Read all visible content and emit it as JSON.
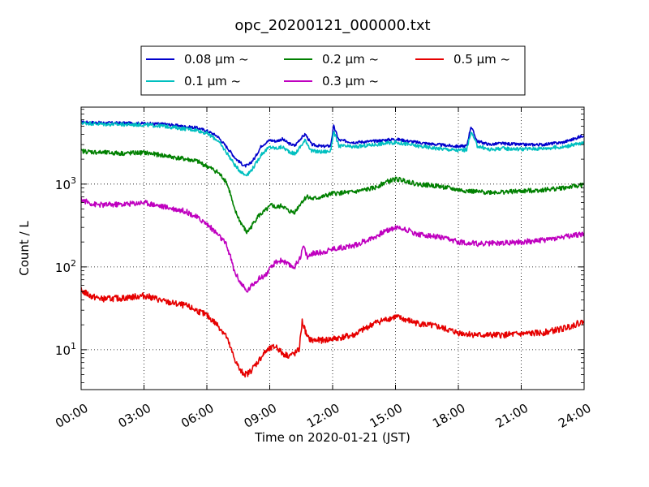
{
  "chart_data": {
    "type": "line",
    "title": "opc_20200121_000000.txt",
    "xlabel": "Time on 2020-01-21 (JST)",
    "ylabel": "Count / L",
    "x_unit": "hour",
    "xlim": [
      0,
      24
    ],
    "ylim": [
      3.3,
      8500
    ],
    "yscale": "log",
    "grid": true,
    "legend_position": "top-center",
    "x_ticks": [
      {
        "value": 0,
        "label": "00:00"
      },
      {
        "value": 3,
        "label": "03:00"
      },
      {
        "value": 6,
        "label": "06:00"
      },
      {
        "value": 9,
        "label": "09:00"
      },
      {
        "value": 12,
        "label": "12:00"
      },
      {
        "value": 15,
        "label": "15:00"
      },
      {
        "value": 18,
        "label": "18:00"
      },
      {
        "value": 21,
        "label": "21:00"
      },
      {
        "value": 24,
        "label": "24:00"
      }
    ],
    "y_ticks": [
      {
        "value": 10,
        "base": "10",
        "exp": "1"
      },
      {
        "value": 100,
        "base": "10",
        "exp": "2"
      },
      {
        "value": 1000,
        "base": "10",
        "exp": "3"
      }
    ],
    "series": [
      {
        "name": "0.08 μm ~",
        "color": "#0000cc",
        "points": [
          [
            0,
            5600
          ],
          [
            1,
            5500
          ],
          [
            2,
            5450
          ],
          [
            3,
            5400
          ],
          [
            4,
            5300
          ],
          [
            4.8,
            5000
          ],
          [
            5.5,
            4800
          ],
          [
            6,
            4400
          ],
          [
            6.5,
            3800
          ],
          [
            7,
            2700
          ],
          [
            7.4,
            2000
          ],
          [
            7.8,
            1650
          ],
          [
            8,
            1700
          ],
          [
            8.3,
            2100
          ],
          [
            8.6,
            2900
          ],
          [
            9,
            3400
          ],
          [
            9.3,
            3300
          ],
          [
            9.6,
            3500
          ],
          [
            9.9,
            3100
          ],
          [
            10.2,
            2900
          ],
          [
            10.4,
            3400
          ],
          [
            10.7,
            4000
          ],
          [
            11,
            3000
          ],
          [
            11.5,
            2850
          ],
          [
            11.9,
            2900
          ],
          [
            12.05,
            5000
          ],
          [
            12.3,
            3400
          ],
          [
            13,
            3200
          ],
          [
            14,
            3300
          ],
          [
            15,
            3500
          ],
          [
            16,
            3200
          ],
          [
            17,
            3000
          ],
          [
            18,
            2850
          ],
          [
            18.4,
            2900
          ],
          [
            18.6,
            5000
          ],
          [
            18.9,
            3300
          ],
          [
            19.5,
            3000
          ],
          [
            20,
            3100
          ],
          [
            21,
            3000
          ],
          [
            22,
            3000
          ],
          [
            23,
            3200
          ],
          [
            23.5,
            3500
          ],
          [
            24,
            3900
          ]
        ]
      },
      {
        "name": "0.1 μm ~",
        "color": "#00bfbf",
        "points": [
          [
            0,
            5500
          ],
          [
            1,
            5300
          ],
          [
            2,
            5250
          ],
          [
            3,
            5200
          ],
          [
            4,
            5000
          ],
          [
            4.8,
            4700
          ],
          [
            5.5,
            4500
          ],
          [
            6,
            4100
          ],
          [
            6.5,
            3400
          ],
          [
            7,
            2300
          ],
          [
            7.4,
            1600
          ],
          [
            7.8,
            1300
          ],
          [
            8,
            1350
          ],
          [
            8.3,
            1700
          ],
          [
            8.6,
            2300
          ],
          [
            9,
            2800
          ],
          [
            9.3,
            2700
          ],
          [
            9.6,
            2800
          ],
          [
            9.9,
            2500
          ],
          [
            10.2,
            2300
          ],
          [
            10.4,
            2700
          ],
          [
            10.7,
            3400
          ],
          [
            11,
            2500
          ],
          [
            11.5,
            2450
          ],
          [
            11.9,
            2500
          ],
          [
            12.05,
            4300
          ],
          [
            12.3,
            2900
          ],
          [
            13,
            2800
          ],
          [
            14,
            3000
          ],
          [
            15,
            3200
          ],
          [
            16,
            2900
          ],
          [
            17,
            2700
          ],
          [
            18,
            2550
          ],
          [
            18.4,
            2600
          ],
          [
            18.6,
            4300
          ],
          [
            18.9,
            2900
          ],
          [
            19.5,
            2600
          ],
          [
            20,
            2700
          ],
          [
            21,
            2650
          ],
          [
            22,
            2700
          ],
          [
            23,
            2800
          ],
          [
            23.5,
            3000
          ],
          [
            24,
            3100
          ]
        ]
      },
      {
        "name": "0.2 μm ~",
        "color": "#008000",
        "points": [
          [
            0,
            2500
          ],
          [
            1,
            2400
          ],
          [
            2,
            2350
          ],
          [
            3,
            2400
          ],
          [
            4,
            2200
          ],
          [
            5,
            2000
          ],
          [
            5.5,
            1900
          ],
          [
            6,
            1650
          ],
          [
            6.5,
            1400
          ],
          [
            6.9,
            1100
          ],
          [
            7.1,
            800
          ],
          [
            7.3,
            500
          ],
          [
            7.6,
            350
          ],
          [
            7.9,
            260
          ],
          [
            8.1,
            300
          ],
          [
            8.4,
            400
          ],
          [
            8.8,
            480
          ],
          [
            9.1,
            560
          ],
          [
            9.3,
            520
          ],
          [
            9.6,
            550
          ],
          [
            9.9,
            470
          ],
          [
            10.2,
            460
          ],
          [
            10.5,
            600
          ],
          [
            10.8,
            720
          ],
          [
            11,
            660
          ],
          [
            11.5,
            700
          ],
          [
            12,
            770
          ],
          [
            13,
            800
          ],
          [
            14,
            900
          ],
          [
            14.5,
            1050
          ],
          [
            15,
            1150
          ],
          [
            15.5,
            1100
          ],
          [
            16,
            1000
          ],
          [
            17,
            950
          ],
          [
            18,
            850
          ],
          [
            19,
            800
          ],
          [
            20,
            800
          ],
          [
            21,
            820
          ],
          [
            22,
            850
          ],
          [
            23,
            900
          ],
          [
            24,
            980
          ]
        ]
      },
      {
        "name": "0.3 μm ~",
        "color": "#bf00bf",
        "points": [
          [
            0,
            650
          ],
          [
            0.6,
            570
          ],
          [
            1,
            560
          ],
          [
            2,
            570
          ],
          [
            3,
            600
          ],
          [
            4,
            530
          ],
          [
            5,
            470
          ],
          [
            5.5,
            400
          ],
          [
            6,
            330
          ],
          [
            6.5,
            250
          ],
          [
            6.9,
            190
          ],
          [
            7.1,
            140
          ],
          [
            7.3,
            90
          ],
          [
            7.6,
            65
          ],
          [
            7.9,
            50
          ],
          [
            8.1,
            58
          ],
          [
            8.4,
            70
          ],
          [
            8.8,
            80
          ],
          [
            9.1,
            100
          ],
          [
            9.3,
            115
          ],
          [
            9.6,
            120
          ],
          [
            9.9,
            105
          ],
          [
            10.2,
            100
          ],
          [
            10.5,
            140
          ],
          [
            10.6,
            180
          ],
          [
            10.8,
            130
          ],
          [
            11,
            145
          ],
          [
            11.5,
            150
          ],
          [
            12,
            165
          ],
          [
            13,
            180
          ],
          [
            14,
            230
          ],
          [
            14.5,
            270
          ],
          [
            15,
            300
          ],
          [
            15.5,
            285
          ],
          [
            16,
            250
          ],
          [
            17,
            230
          ],
          [
            18,
            200
          ],
          [
            19,
            190
          ],
          [
            20,
            195
          ],
          [
            21,
            200
          ],
          [
            22,
            210
          ],
          [
            23,
            230
          ],
          [
            24,
            250
          ]
        ]
      },
      {
        "name": "0.5 μm ~",
        "color": "#e60000",
        "points": [
          [
            0,
            52
          ],
          [
            0.5,
            44
          ],
          [
            1,
            41
          ],
          [
            2,
            42
          ],
          [
            3,
            45
          ],
          [
            3.5,
            42
          ],
          [
            4,
            38
          ],
          [
            5,
            34
          ],
          [
            5.5,
            30
          ],
          [
            6,
            26
          ],
          [
            6.5,
            20
          ],
          [
            6.9,
            15
          ],
          [
            7.1,
            11
          ],
          [
            7.3,
            8
          ],
          [
            7.6,
            5.5
          ],
          [
            7.9,
            5
          ],
          [
            8.1,
            5.6
          ],
          [
            8.4,
            7
          ],
          [
            8.8,
            9.5
          ],
          [
            9.1,
            10.5
          ],
          [
            9.3,
            11
          ],
          [
            9.6,
            9
          ],
          [
            9.9,
            8.5
          ],
          [
            10.2,
            9
          ],
          [
            10.4,
            10
          ],
          [
            10.55,
            22
          ],
          [
            10.8,
            14
          ],
          [
            11,
            13
          ],
          [
            11.5,
            13
          ],
          [
            12,
            13.5
          ],
          [
            13,
            15
          ],
          [
            14,
            21
          ],
          [
            14.5,
            23
          ],
          [
            15,
            25
          ],
          [
            15.5,
            23
          ],
          [
            16,
            21
          ],
          [
            17,
            19
          ],
          [
            18,
            16
          ],
          [
            19,
            15
          ],
          [
            20,
            15
          ],
          [
            21,
            15.5
          ],
          [
            22,
            16
          ],
          [
            23,
            18
          ],
          [
            24,
            22
          ]
        ]
      }
    ]
  }
}
